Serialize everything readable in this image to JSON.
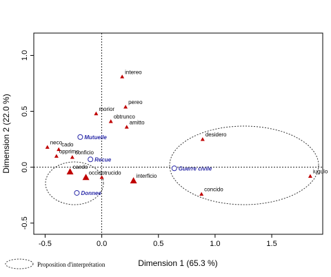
{
  "chart_data": {
    "type": "scatter",
    "xlabel": "Dimension 1 (65.3 %)",
    "ylabel": "Dimension 2 (22.0 %)",
    "xlim": [
      -0.6,
      1.95
    ],
    "ylim": [
      -0.6,
      1.2
    ],
    "xticks": [
      -0.5,
      0.0,
      0.5,
      1.0,
      1.5
    ],
    "xtick_labels": [
      "-0.5",
      "0.0",
      "0.5",
      "1.0",
      "1.5"
    ],
    "yticks": [
      -0.5,
      0.0,
      0.5,
      1.0
    ],
    "ytick_labels": [
      "-0.5",
      "0.0",
      "0.5",
      "1.0"
    ],
    "reference_lines": {
      "x": 0,
      "y": 0,
      "style": "dashed"
    },
    "colors": {
      "verb": "#c00000",
      "category": "#2a2aa8",
      "axis": "#000000"
    },
    "verbs": [
      {
        "label": "intereo",
        "x": 0.18,
        "y": 0.81
      },
      {
        "label": "pereo",
        "x": 0.21,
        "y": 0.54
      },
      {
        "label": "morior",
        "x": -0.05,
        "y": 0.48
      },
      {
        "label": "obtrunco",
        "x": 0.08,
        "y": 0.41
      },
      {
        "label": "amitto",
        "x": 0.22,
        "y": 0.36
      },
      {
        "label": "cado",
        "x": -0.38,
        "y": 0.16
      },
      {
        "label": "neco",
        "x": -0.48,
        "y": 0.18
      },
      {
        "label": "opprimo",
        "x": -0.4,
        "y": 0.1
      },
      {
        "label": "conficio",
        "x": -0.26,
        "y": 0.09
      },
      {
        "label": "caedo",
        "x": -0.28,
        "y": -0.04,
        "size": "large"
      },
      {
        "label": "occido",
        "x": -0.14,
        "y": -0.09,
        "size": "large"
      },
      {
        "label": "trucido",
        "x": 0.0,
        "y": -0.09
      },
      {
        "label": "interficio",
        "x": 0.28,
        "y": -0.12,
        "size": "large"
      },
      {
        "label": "desidero",
        "x": 0.89,
        "y": 0.25
      },
      {
        "label": "concido",
        "x": 0.88,
        "y": -0.24
      },
      {
        "label": "iugulo",
        "x": 1.84,
        "y": -0.08
      }
    ],
    "categories": [
      {
        "label": "Mutuelle",
        "x": -0.19,
        "y": 0.27
      },
      {
        "label": "Recue",
        "x": -0.1,
        "y": 0.07
      },
      {
        "label": "Guerre civile",
        "x": 0.64,
        "y": -0.01
      },
      {
        "label": "Donnee",
        "x": -0.22,
        "y": -0.23
      }
    ]
  },
  "legend": {
    "label": "Proposition d'interprétation",
    "placement": "bottom-left"
  }
}
